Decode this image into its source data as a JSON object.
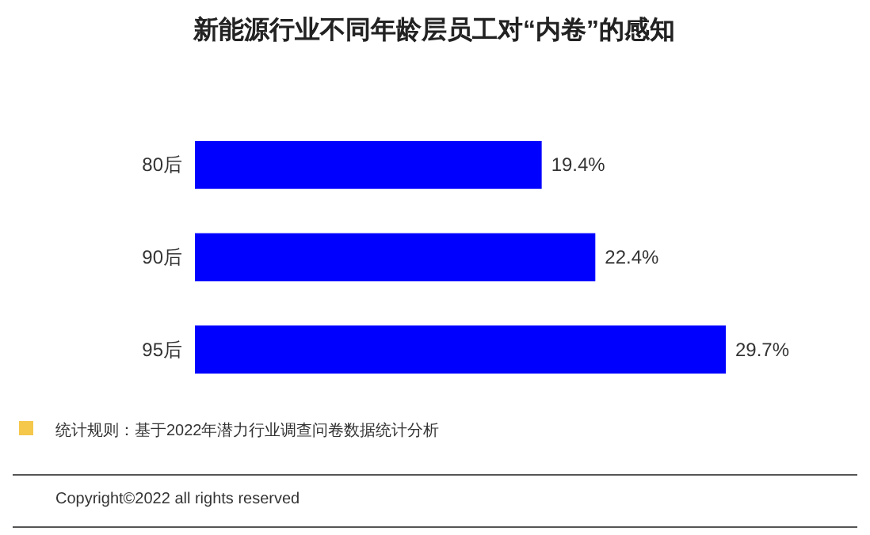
{
  "chart_data": {
    "type": "bar",
    "orientation": "horizontal",
    "title": "新能源行业不同年龄层员工对“内卷”的感知",
    "categories": [
      "80后",
      "90后",
      "95后"
    ],
    "values": [
      19.4,
      22.4,
      29.7
    ],
    "value_labels": [
      "19.4%",
      "22.4%",
      "29.7%"
    ],
    "color": "#0000ff",
    "annotations": [
      "统计规则：基于2022年潜力行业调查问卷数据统计分析",
      "Copyright©2022 all rights reserved"
    ]
  }
}
